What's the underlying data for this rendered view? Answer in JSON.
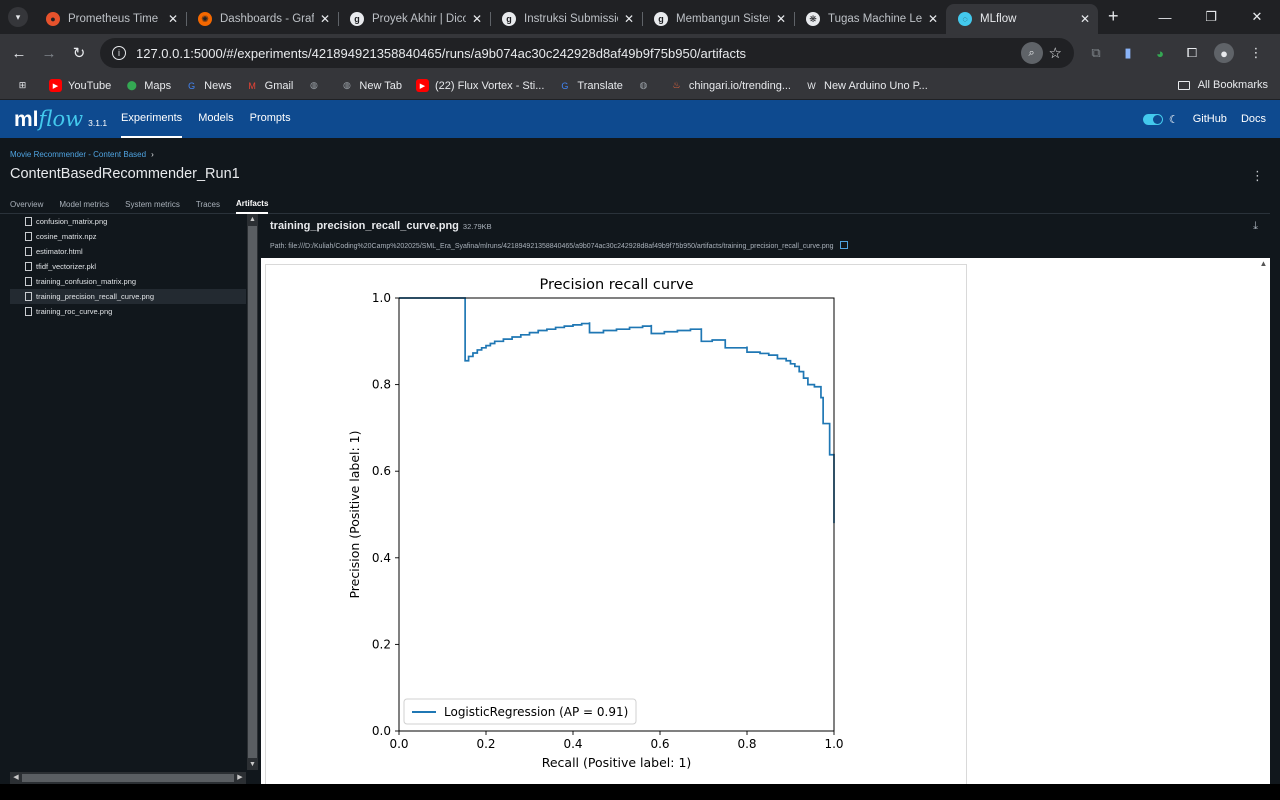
{
  "browser": {
    "tabs": [
      {
        "title": "Prometheus Time Se",
        "icon": "prometheus-icon",
        "color": "#e6522c",
        "active": false
      },
      {
        "title": "Dashboards - Grafan",
        "icon": "grafana-icon",
        "color": "#f46800",
        "active": false
      },
      {
        "title": "Proyek Akhir | Dicodi",
        "icon": "dicoding-icon",
        "color": "#e8eaed",
        "active": false
      },
      {
        "title": "Instruksi Submission",
        "icon": "dicoding-icon",
        "color": "#e8eaed",
        "active": false
      },
      {
        "title": "Membangun Sistem",
        "icon": "dicoding-icon",
        "color": "#e8eaed",
        "active": false
      },
      {
        "title": "Tugas Machine Learn",
        "icon": "chatgpt-icon",
        "color": "#e8eaed",
        "active": false
      },
      {
        "title": "MLflow",
        "icon": "mlflow-icon",
        "color": "#43c9ed",
        "active": true
      }
    ],
    "url": "127.0.0.1:5000/#/experiments/421894921358840465/runs/a9b074ac30c242928d8af49b9f75b950/artifacts",
    "bookmarks": [
      {
        "label": "",
        "icon": "apps-grid-icon",
        "color": "#e8eaed"
      },
      {
        "label": "YouTube",
        "icon": "youtube-icon",
        "color": "#ff0000"
      },
      {
        "label": "Maps",
        "icon": "maps-pin-icon",
        "color": "#34a853"
      },
      {
        "label": "News",
        "icon": "google-news-icon",
        "color": "#4285f4"
      },
      {
        "label": "Gmail",
        "icon": "gmail-icon",
        "color": "#ea4335"
      },
      {
        "label": "",
        "icon": "globe-icon",
        "color": "#9aa0a6"
      },
      {
        "label": "New Tab",
        "icon": "globe-icon",
        "color": "#9aa0a6"
      },
      {
        "label": "(22) Flux Vortex - Sti...",
        "icon": "youtube-icon",
        "color": "#ff0000"
      },
      {
        "label": "Translate",
        "icon": "google-translate-icon",
        "color": "#4285f4"
      },
      {
        "label": "",
        "icon": "globe-icon",
        "color": "#9aa0a6"
      },
      {
        "label": "chingari.io/trending...",
        "icon": "chingari-icon",
        "color": "#ff6a3d"
      },
      {
        "label": "New Arduino Uno P...",
        "icon": "w-letter-icon",
        "color": "#e8eaed"
      }
    ],
    "all_bookmarks": "All Bookmarks"
  },
  "mlflow": {
    "logo_ml": "ml",
    "logo_flow": "flow",
    "version": "3.1.1",
    "nav": [
      {
        "label": "Experiments",
        "active": true
      },
      {
        "label": "Models",
        "active": false
      },
      {
        "label": "Prompts",
        "active": false
      }
    ],
    "github": "GitHub",
    "docs": "Docs"
  },
  "run": {
    "breadcrumb": "Movie Recommender - Content Based",
    "title": "ContentBasedRecommender_Run1",
    "tabs": [
      {
        "label": "Overview",
        "active": false
      },
      {
        "label": "Model metrics",
        "active": false
      },
      {
        "label": "System metrics",
        "active": false
      },
      {
        "label": "Traces",
        "active": false
      },
      {
        "label": "Artifacts",
        "active": true
      }
    ]
  },
  "artifacts": {
    "files": [
      {
        "name": "confusion_matrix.png",
        "selected": false
      },
      {
        "name": "cosine_matrix.npz",
        "selected": false
      },
      {
        "name": "estimator.html",
        "selected": false
      },
      {
        "name": "tfidf_vectorizer.pkl",
        "selected": false
      },
      {
        "name": "training_confusion_matrix.png",
        "selected": false
      },
      {
        "name": "training_precision_recall_curve.png",
        "selected": true
      },
      {
        "name": "training_roc_curve.png",
        "selected": false
      }
    ],
    "selected_name": "training_precision_recall_curve.png",
    "selected_size": "32.79KB",
    "path": "Path: file:///D:/Kuliah/Coding%20Camp%202025/SML_Era_Syafina/mlruns/421894921358840465/a9b074ac30c242928d8af49b9f75b950/artifacts/training_precision_recall_curve.png"
  },
  "chart_data": {
    "type": "line",
    "title": "Precision recall curve",
    "xlabel": "Recall (Positive label: 1)",
    "ylabel": "Precision (Positive label: 1)",
    "xlim": [
      0.0,
      1.0
    ],
    "ylim": [
      0.0,
      1.0
    ],
    "xticks": [
      "0.0",
      "0.2",
      "0.4",
      "0.6",
      "0.8",
      "1.0"
    ],
    "yticks": [
      "0.0",
      "0.2",
      "0.4",
      "0.6",
      "0.8",
      "1.0"
    ],
    "grid": false,
    "legend_position": "bottom-left",
    "series": [
      {
        "name": "LogisticRegression (AP = 0.91)",
        "color": "#1f77b4",
        "drawstyle": "steps-post",
        "x": [
          0.0,
          0.152,
          0.152,
          0.16,
          0.17,
          0.18,
          0.19,
          0.2,
          0.21,
          0.22,
          0.24,
          0.26,
          0.28,
          0.3,
          0.32,
          0.34,
          0.36,
          0.38,
          0.4,
          0.42,
          0.438,
          0.438,
          0.47,
          0.5,
          0.53,
          0.56,
          0.58,
          0.58,
          0.61,
          0.64,
          0.67,
          0.695,
          0.695,
          0.72,
          0.75,
          0.75,
          0.8,
          0.8,
          0.83,
          0.85,
          0.87,
          0.89,
          0.9,
          0.91,
          0.92,
          0.93,
          0.94,
          0.955,
          0.97,
          0.975,
          0.985,
          0.99,
          1.0,
          1.0
        ],
        "y": [
          1.0,
          1.0,
          0.855,
          0.865,
          0.873,
          0.88,
          0.885,
          0.89,
          0.895,
          0.9,
          0.905,
          0.91,
          0.915,
          0.92,
          0.925,
          0.928,
          0.932,
          0.935,
          0.938,
          0.941,
          0.944,
          0.92,
          0.925,
          0.928,
          0.932,
          0.935,
          0.938,
          0.918,
          0.922,
          0.925,
          0.928,
          0.93,
          0.9,
          0.903,
          0.905,
          0.885,
          0.888,
          0.875,
          0.872,
          0.868,
          0.86,
          0.855,
          0.848,
          0.842,
          0.83,
          0.815,
          0.8,
          0.795,
          0.77,
          0.71,
          0.71,
          0.638,
          0.638,
          0.48
        ]
      }
    ]
  }
}
